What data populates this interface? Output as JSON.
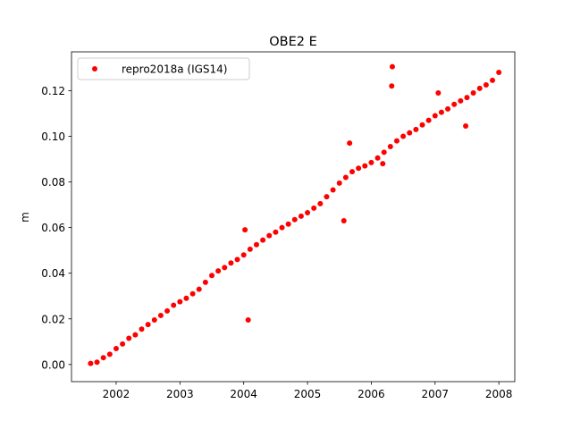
{
  "chart_data": {
    "type": "scatter",
    "title": "OBE2 E",
    "xlabel": "",
    "ylabel": "m",
    "xlim": [
      2001.3,
      2008.25
    ],
    "ylim": [
      -0.0075,
      0.137
    ],
    "xticks": [
      2002,
      2003,
      2004,
      2005,
      2006,
      2007,
      2008
    ],
    "xtick_labels": [
      "2002",
      "2003",
      "2004",
      "2005",
      "2006",
      "2007",
      "2008"
    ],
    "yticks": [
      0.0,
      0.02,
      0.04,
      0.06,
      0.08,
      0.1,
      0.12
    ],
    "ytick_labels": [
      "0.00",
      "0.02",
      "0.04",
      "0.06",
      "0.08",
      "0.10",
      "0.12"
    ],
    "grid": false,
    "legend_position": "top-left",
    "colors": {
      "series": "#ff0000"
    },
    "series": [
      {
        "name": "repro2018a (IGS14)",
        "x": [
          2001.6,
          2001.7,
          2001.8,
          2001.9,
          2002.0,
          2002.1,
          2002.2,
          2002.3,
          2002.4,
          2002.5,
          2002.6,
          2002.7,
          2002.8,
          2002.9,
          2003.0,
          2003.1,
          2003.2,
          2003.3,
          2003.4,
          2003.5,
          2003.6,
          2003.7,
          2003.8,
          2003.9,
          2004.0,
          2004.1,
          2004.2,
          2004.3,
          2004.4,
          2004.5,
          2004.6,
          2004.7,
          2004.8,
          2004.9,
          2005.0,
          2005.1,
          2005.2,
          2005.3,
          2005.4,
          2005.5,
          2005.6,
          2005.7,
          2005.8,
          2005.9,
          2006.0,
          2006.1,
          2006.2,
          2006.3,
          2006.4,
          2006.5,
          2006.6,
          2006.7,
          2006.8,
          2006.9,
          2007.0,
          2007.1,
          2007.2,
          2007.3,
          2007.4,
          2007.5,
          2007.6,
          2007.7,
          2007.8,
          2007.9,
          2008.0,
          2004.07,
          2006.33,
          2006.32,
          2005.57,
          2005.66,
          2007.48,
          2006.18,
          2004.02,
          2007.05
        ],
        "y": [
          0.0005,
          0.001,
          0.003,
          0.0045,
          0.007,
          0.009,
          0.0115,
          0.013,
          0.0155,
          0.0175,
          0.0195,
          0.0215,
          0.0235,
          0.026,
          0.0275,
          0.029,
          0.031,
          0.033,
          0.036,
          0.039,
          0.041,
          0.0425,
          0.0445,
          0.046,
          0.048,
          0.0505,
          0.0525,
          0.0545,
          0.0565,
          0.058,
          0.06,
          0.0615,
          0.0635,
          0.065,
          0.0665,
          0.0685,
          0.0705,
          0.0735,
          0.0765,
          0.0795,
          0.082,
          0.0845,
          0.086,
          0.087,
          0.0885,
          0.0905,
          0.093,
          0.0955,
          0.098,
          0.1,
          0.1015,
          0.103,
          0.105,
          0.107,
          0.109,
          0.1105,
          0.112,
          0.114,
          0.1155,
          0.117,
          0.119,
          0.121,
          0.1225,
          0.1245,
          0.128,
          0.0195,
          0.1305,
          0.122,
          0.063,
          0.097,
          0.1045,
          0.088,
          0.059,
          0.119
        ]
      }
    ]
  }
}
